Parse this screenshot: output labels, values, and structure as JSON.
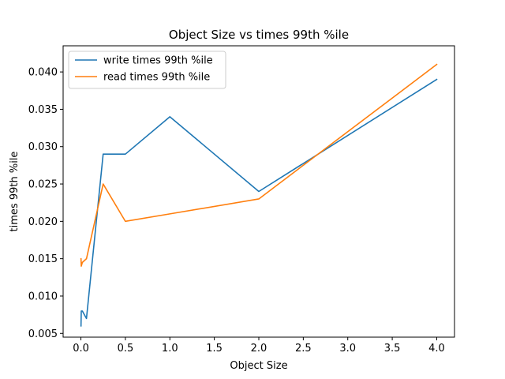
{
  "chart_data": {
    "type": "line",
    "title": "Object Size vs times 99th %ile",
    "xlabel": "Object Size",
    "ylabel": "times 99th %ile",
    "xlim": [
      -0.2,
      4.2
    ],
    "ylim": [
      0.0045,
      0.0435
    ],
    "x_ticks": [
      0.0,
      0.5,
      1.0,
      1.5,
      2.0,
      2.5,
      3.0,
      3.5,
      4.0
    ],
    "x_tick_labels": [
      "0.0",
      "0.5",
      "1.0",
      "1.5",
      "2.0",
      "2.5",
      "3.0",
      "3.5",
      "4.0"
    ],
    "y_ticks": [
      0.005,
      0.01,
      0.015,
      0.02,
      0.025,
      0.03,
      0.035,
      0.04
    ],
    "y_tick_labels": [
      "0.005",
      "0.010",
      "0.015",
      "0.020",
      "0.025",
      "0.030",
      "0.035",
      "0.040"
    ],
    "grid": false,
    "legend_position": "top-left",
    "series": [
      {
        "name": "write times 99th %ile",
        "color": "#1f77b4",
        "x": [
          0.001,
          0.004,
          0.016,
          0.0625,
          0.25,
          0.5,
          1.0,
          2.0,
          4.0
        ],
        "y": [
          0.006,
          0.008,
          0.008,
          0.007,
          0.029,
          0.029,
          0.034,
          0.024,
          0.039
        ]
      },
      {
        "name": "read times 99th %ile",
        "color": "#ff7f0e",
        "x": [
          0.001,
          0.004,
          0.016,
          0.0625,
          0.25,
          0.5,
          1.0,
          2.0,
          4.0
        ],
        "y": [
          0.015,
          0.014,
          0.0145,
          0.015,
          0.025,
          0.02,
          0.021,
          0.023,
          0.041
        ]
      }
    ]
  }
}
